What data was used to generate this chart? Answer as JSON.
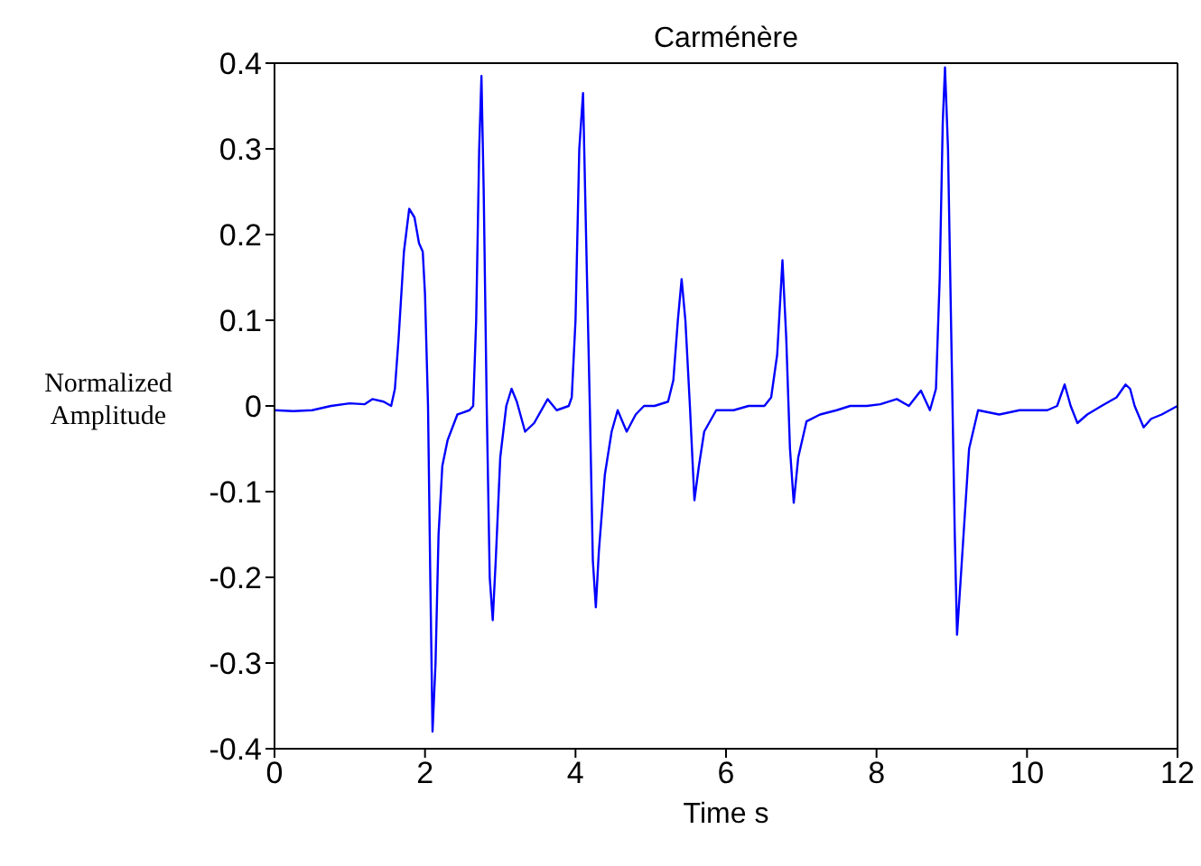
{
  "chart_data": {
    "type": "line",
    "title": "Carménère",
    "xlabel": "Time s",
    "ylabel": "Normalized Amplitude",
    "xlim": [
      0,
      12
    ],
    "xticks": [
      0,
      2,
      4,
      6,
      8,
      10,
      12
    ],
    "ylim": [
      -0.4,
      0.4
    ],
    "yticks": [
      -0.4,
      -0.3,
      -0.2,
      -0.1,
      0,
      0.1,
      0.2,
      0.3,
      0.4
    ],
    "marker": "none",
    "line_style": "solid",
    "series": [
      {
        "color": "#0000ff",
        "x": [
          0,
          0.25,
          0.5,
          0.75,
          1.0,
          1.2,
          1.3,
          1.45,
          1.55,
          1.6,
          1.65,
          1.72,
          1.79,
          1.86,
          1.92,
          1.97,
          2.0,
          2.04,
          2.07,
          2.1,
          2.14,
          2.18,
          2.23,
          2.3,
          2.43,
          2.59,
          2.64,
          2.68,
          2.72,
          2.75,
          2.78,
          2.82,
          2.86,
          2.9,
          2.94,
          3.0,
          3.08,
          3.15,
          3.22,
          3.33,
          3.45,
          3.63,
          3.75,
          3.91,
          3.95,
          4.0,
          4.05,
          4.1,
          4.14,
          4.19,
          4.23,
          4.27,
          4.31,
          4.39,
          4.48,
          4.56,
          4.68,
          4.8,
          4.91,
          5.05,
          5.23,
          5.3,
          5.36,
          5.41,
          5.46,
          5.52,
          5.58,
          5.64,
          5.71,
          5.87,
          6.1,
          6.3,
          6.51,
          6.6,
          6.68,
          6.75,
          6.8,
          6.85,
          6.9,
          6.96,
          7.07,
          7.25,
          7.47,
          7.65,
          7.87,
          8.05,
          8.27,
          8.43,
          8.59,
          8.71,
          8.79,
          8.84,
          8.88,
          8.91,
          8.95,
          9.0,
          9.04,
          9.07,
          9.12,
          9.23,
          9.35,
          9.63,
          9.9,
          10.27,
          10.4,
          10.5,
          10.58,
          10.67,
          10.8,
          10.99,
          11.19,
          11.31,
          11.37,
          11.43,
          11.55,
          11.65,
          11.79,
          12
        ],
        "values": [
          -0.005,
          -0.006,
          -0.005,
          0.0,
          0.003,
          0.002,
          0.008,
          0.005,
          0.0,
          0.02,
          0.08,
          0.18,
          0.23,
          0.22,
          0.19,
          0.18,
          0.13,
          0.0,
          -0.2,
          -0.38,
          -0.3,
          -0.15,
          -0.07,
          -0.04,
          -0.01,
          -0.005,
          0.0,
          0.1,
          0.3,
          0.385,
          0.25,
          0.0,
          -0.2,
          -0.25,
          -0.18,
          -0.06,
          0.0,
          0.02,
          0.005,
          -0.03,
          -0.02,
          0.008,
          -0.005,
          0.0,
          0.01,
          0.1,
          0.3,
          0.365,
          0.2,
          0.0,
          -0.18,
          -0.235,
          -0.17,
          -0.08,
          -0.03,
          -0.005,
          -0.03,
          -0.01,
          0.0,
          0.0,
          0.005,
          0.03,
          0.1,
          0.148,
          0.1,
          0.0,
          -0.11,
          -0.07,
          -0.03,
          -0.005,
          -0.005,
          0.0,
          0.0,
          0.01,
          0.06,
          0.17,
          0.08,
          -0.05,
          -0.113,
          -0.06,
          -0.018,
          -0.01,
          -0.005,
          0.0,
          0.0,
          0.002,
          0.008,
          0.0,
          0.018,
          -0.005,
          0.02,
          0.15,
          0.33,
          0.395,
          0.3,
          0.05,
          -0.15,
          -0.267,
          -0.2,
          -0.05,
          -0.005,
          -0.01,
          -0.005,
          -0.005,
          0.0,
          0.025,
          0.0,
          -0.02,
          -0.01,
          0.0,
          0.01,
          0.025,
          0.02,
          0.0,
          -0.025,
          -0.015,
          -0.01,
          0.0
        ]
      }
    ]
  }
}
